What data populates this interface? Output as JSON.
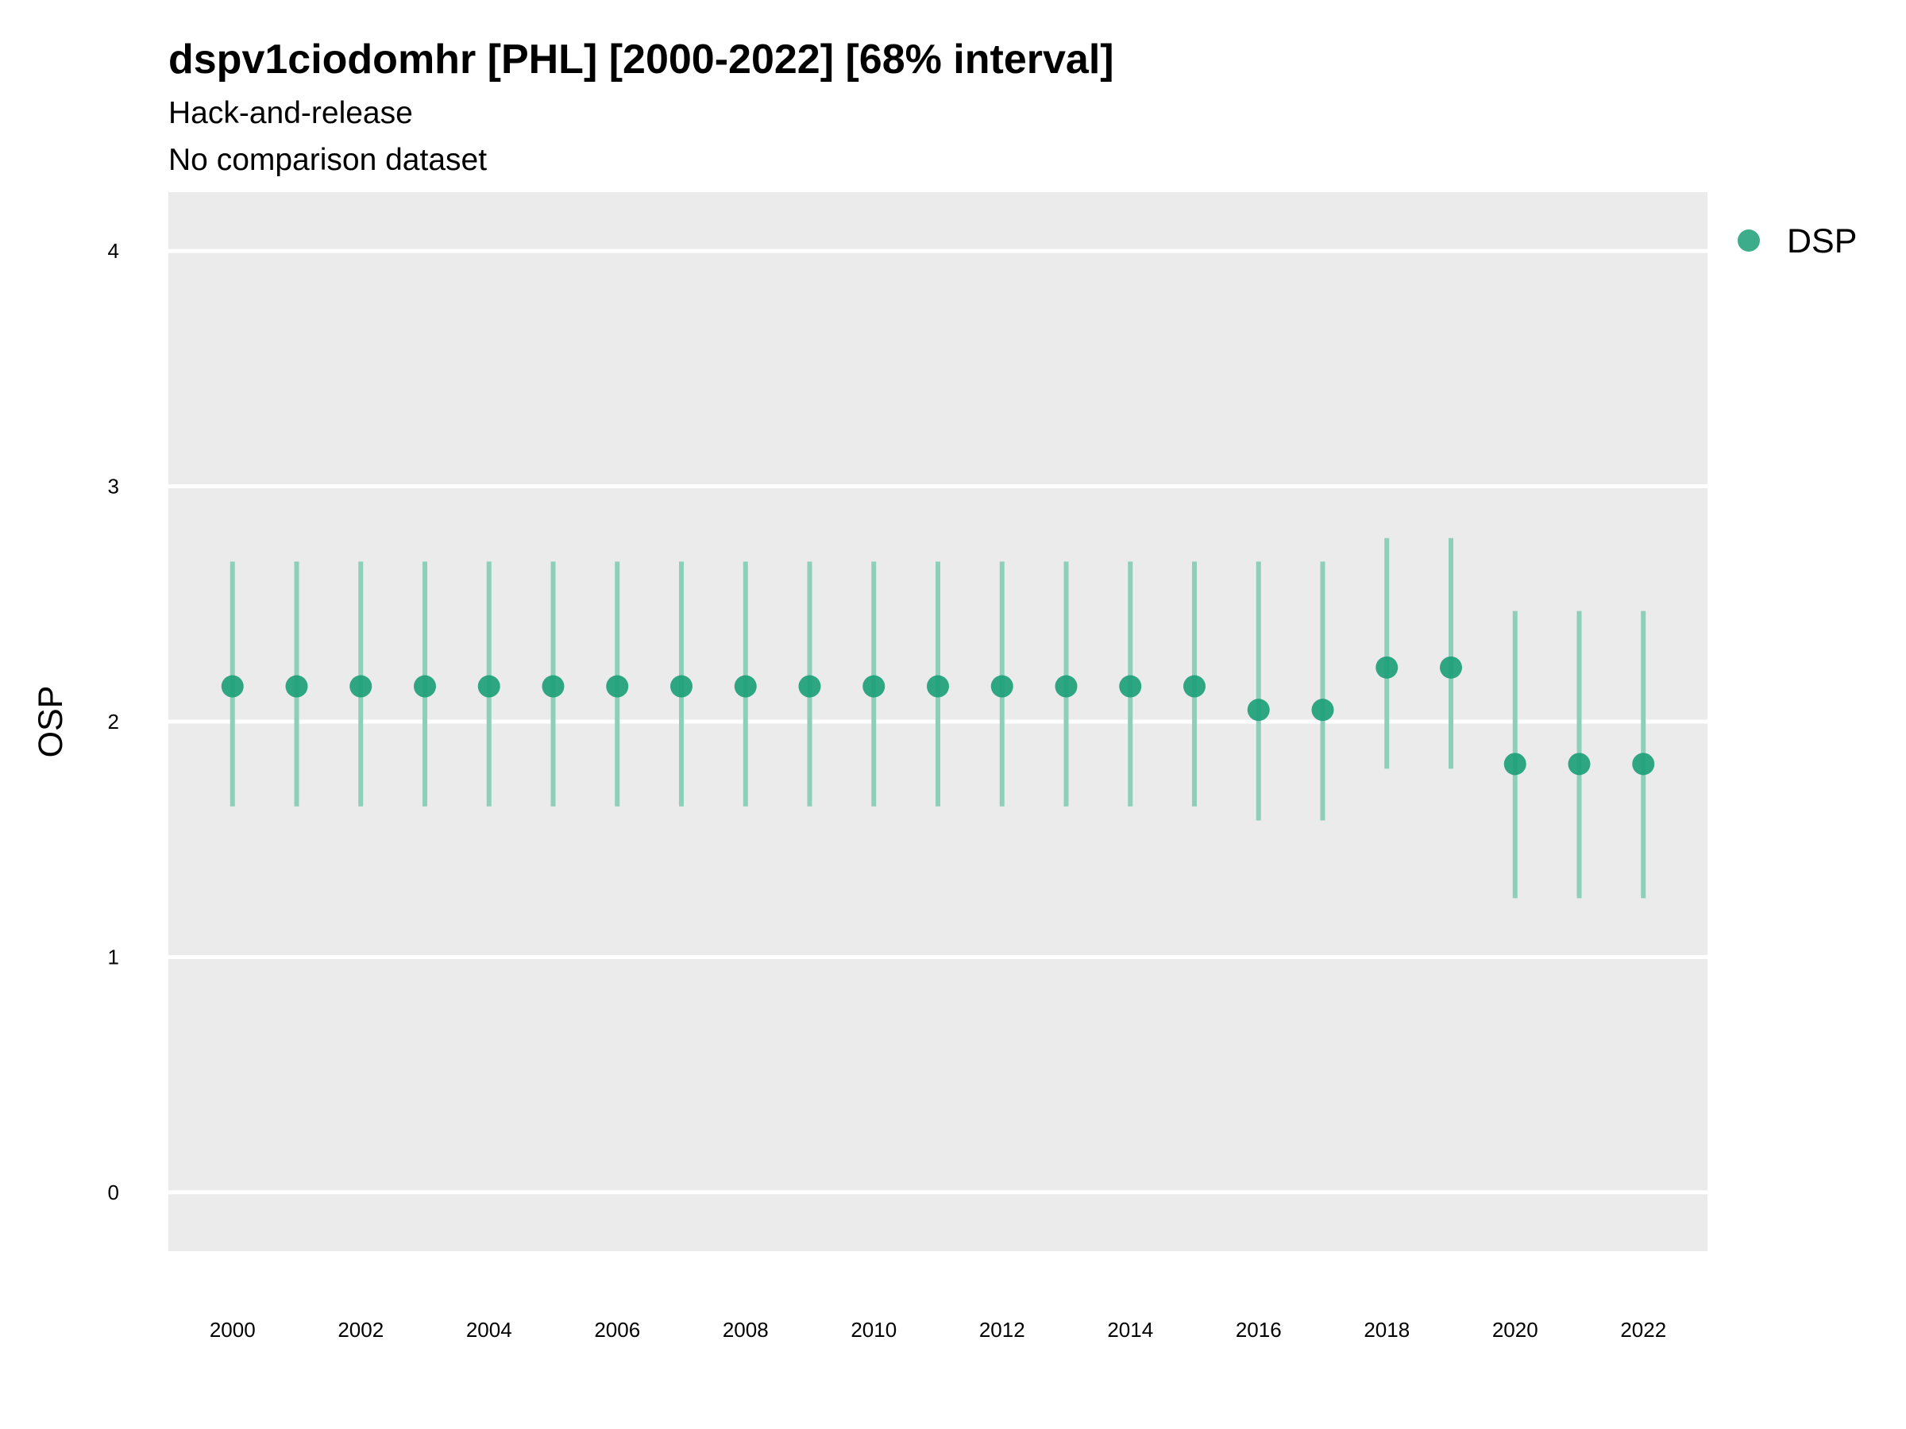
{
  "chart_data": {
    "type": "scatter",
    "title": "dspv1ciodomhr [PHL] [2000-2022] [68% interval]",
    "subtitle": "Hack-and-release",
    "subtitle2": "No comparison dataset",
    "ylabel": "OSP",
    "xlabel": "",
    "ylim": [
      -0.25,
      4.25
    ],
    "xlim": [
      1999,
      2023
    ],
    "yticks": [
      0,
      1,
      2,
      3,
      4
    ],
    "xticks": [
      2000,
      2002,
      2004,
      2006,
      2008,
      2010,
      2012,
      2014,
      2016,
      2018,
      2020,
      2022
    ],
    "grid": true,
    "legend_position": "right",
    "series": [
      {
        "name": "DSP",
        "color": "#1b9e77",
        "x": [
          2000,
          2001,
          2002,
          2003,
          2004,
          2005,
          2006,
          2007,
          2008,
          2009,
          2010,
          2011,
          2012,
          2013,
          2014,
          2015,
          2016,
          2017,
          2018,
          2019,
          2020,
          2021,
          2022
        ],
        "y": [
          2.15,
          2.15,
          2.15,
          2.15,
          2.15,
          2.15,
          2.15,
          2.15,
          2.15,
          2.15,
          2.15,
          2.15,
          2.15,
          2.15,
          2.15,
          2.15,
          2.05,
          2.05,
          2.23,
          2.23,
          1.82,
          1.82,
          1.82
        ],
        "lower": [
          1.64,
          1.64,
          1.64,
          1.64,
          1.64,
          1.64,
          1.64,
          1.64,
          1.64,
          1.64,
          1.64,
          1.64,
          1.64,
          1.64,
          1.64,
          1.64,
          1.58,
          1.58,
          1.8,
          1.8,
          1.25,
          1.25,
          1.25
        ],
        "upper": [
          2.68,
          2.68,
          2.68,
          2.68,
          2.68,
          2.68,
          2.68,
          2.68,
          2.68,
          2.68,
          2.68,
          2.68,
          2.68,
          2.68,
          2.68,
          2.68,
          2.68,
          2.68,
          2.78,
          2.78,
          2.47,
          2.47,
          2.47
        ]
      }
    ]
  },
  "colors": {
    "panel_background": "#ebebeb",
    "grid": "#ffffff",
    "point": "#1b9e77",
    "interval": "#8dcfb9"
  }
}
